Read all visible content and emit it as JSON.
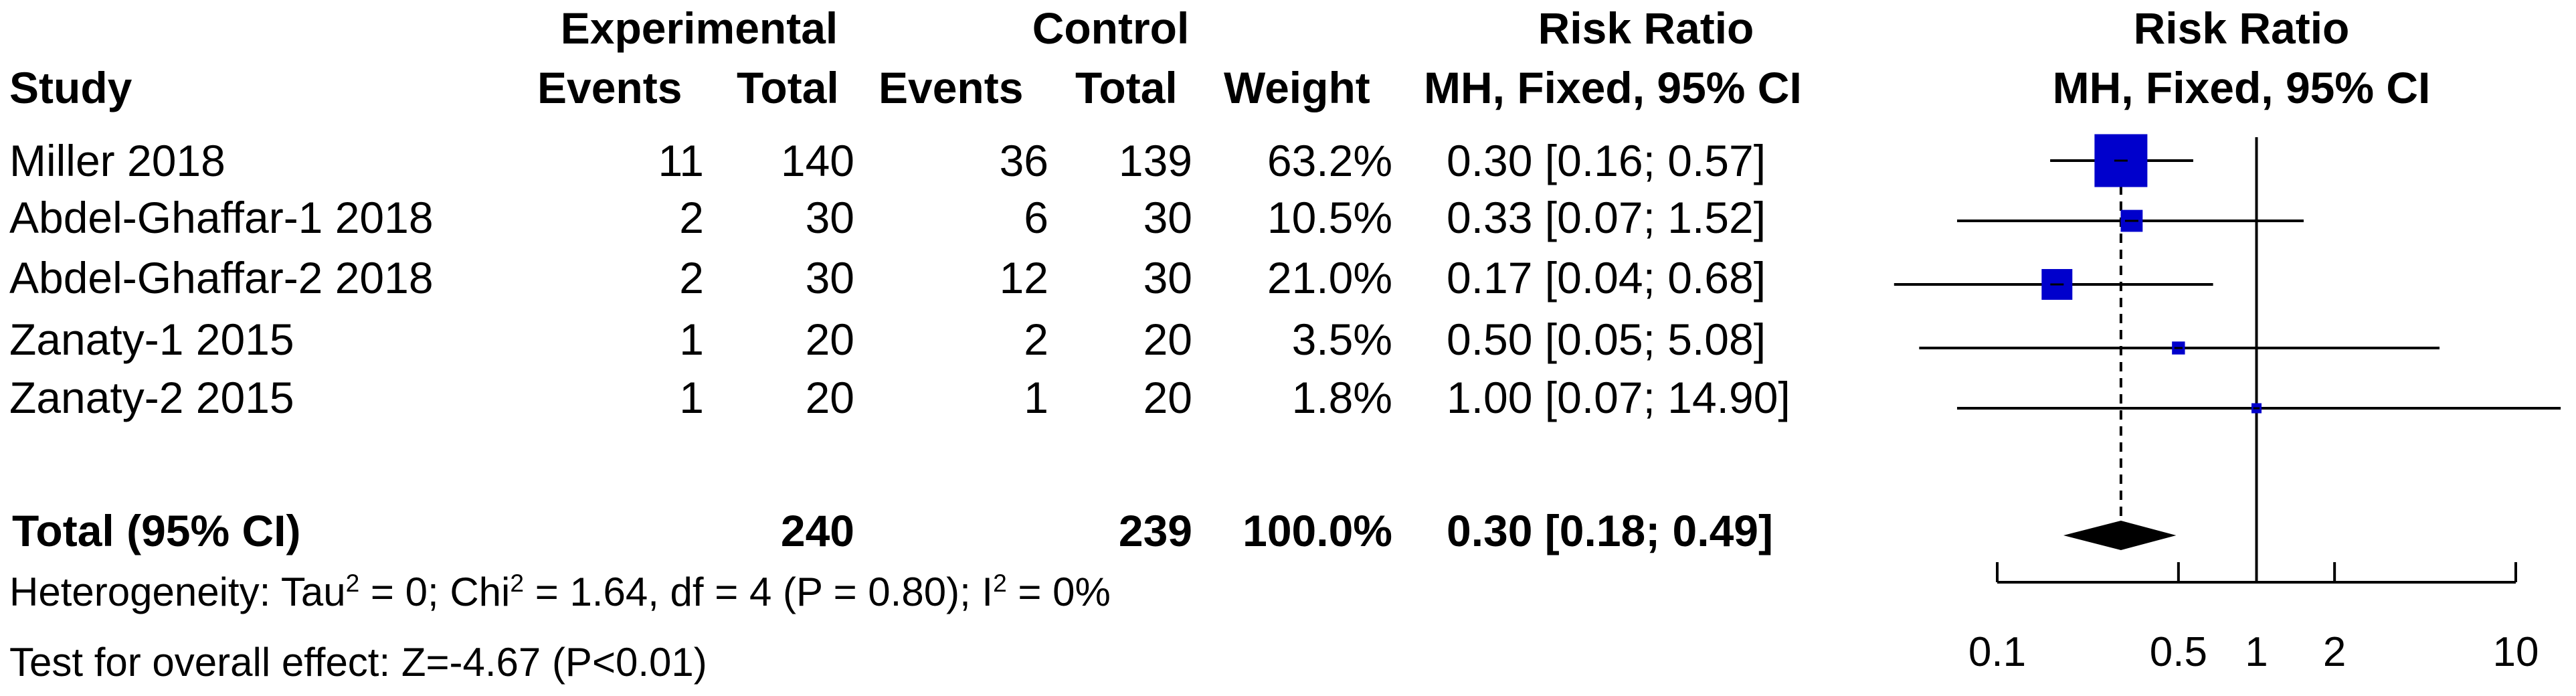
{
  "headers": {
    "study": "Study",
    "experimental": "Experimental",
    "control": "Control",
    "events": "Events",
    "total": "Total",
    "weight": "Weight",
    "risk_ratio": "Risk Ratio",
    "method": "MH, Fixed, 95% CI",
    "plot_title": "Risk Ratio",
    "plot_method": "MH, Fixed, 95% CI"
  },
  "studies": [
    {
      "name": "Miller 2018",
      "e_events": "11",
      "e_total": "140",
      "c_events": "36",
      "c_total": "139",
      "weight": "63.2%",
      "ci_text": "0.30 [0.16;  0.57]"
    },
    {
      "name": "Abdel-Ghaffar-1 2018",
      "e_events": "2",
      "e_total": "30",
      "c_events": "6",
      "c_total": "30",
      "weight": "10.5%",
      "ci_text": "0.33 [0.07;  1.52]"
    },
    {
      "name": "Abdel-Ghaffar-2 2018",
      "e_events": "2",
      "e_total": "30",
      "c_events": "12",
      "c_total": "30",
      "weight": "21.0%",
      "ci_text": "0.17 [0.04;  0.68]"
    },
    {
      "name": "Zanaty-1 2015",
      "e_events": "1",
      "e_total": "20",
      "c_events": "2",
      "c_total": "20",
      "weight": "3.5%",
      "ci_text": "0.50 [0.05;  5.08]"
    },
    {
      "name": "Zanaty-2 2015",
      "e_events": "1",
      "e_total": "20",
      "c_events": "1",
      "c_total": "20",
      "weight": "1.8%",
      "ci_text": "1.00 [0.07; 14.90]"
    }
  ],
  "total_row": {
    "label": "Total (95% CI)",
    "e_total": "240",
    "c_total": "239",
    "weight": "100.0%",
    "ci_text": "0.30 [0.18;  0.49]"
  },
  "heterogeneity": {
    "prefix": "Heterogeneity: Tau",
    "tau_sup": "2",
    "tau_val": " = 0; Chi",
    "chi_sup": "2",
    "chi_val": " = 1.64, df = 4 (P = 0.80); I",
    "i_sup": "2",
    "i_val": " = 0%"
  },
  "overall_effect": "Test for overall effect: Z=-4.67 (P<0.01)",
  "chart_data": {
    "type": "forest",
    "scale": "log",
    "xlim": [
      0.1,
      10
    ],
    "ticks": [
      0.1,
      0.5,
      1,
      2,
      10
    ],
    "tick_labels": [
      "0.1",
      "0.5",
      "1",
      "2",
      "10"
    ],
    "null_line": 1,
    "pooled_line": 0.3,
    "studies": [
      {
        "estimate": 0.3,
        "lower": 0.16,
        "upper": 0.57,
        "weight": 63.2
      },
      {
        "estimate": 0.33,
        "lower": 0.07,
        "upper": 1.52,
        "weight": 10.5
      },
      {
        "estimate": 0.17,
        "lower": 0.04,
        "upper": 0.68,
        "weight": 21.0
      },
      {
        "estimate": 0.5,
        "lower": 0.05,
        "upper": 5.08,
        "weight": 3.5
      },
      {
        "estimate": 1.0,
        "lower": 0.07,
        "upper": 14.9,
        "weight": 1.8
      }
    ],
    "pooled": {
      "estimate": 0.3,
      "lower": 0.18,
      "upper": 0.49
    },
    "colors": {
      "box": "#0000cc",
      "line": "#000000"
    }
  }
}
